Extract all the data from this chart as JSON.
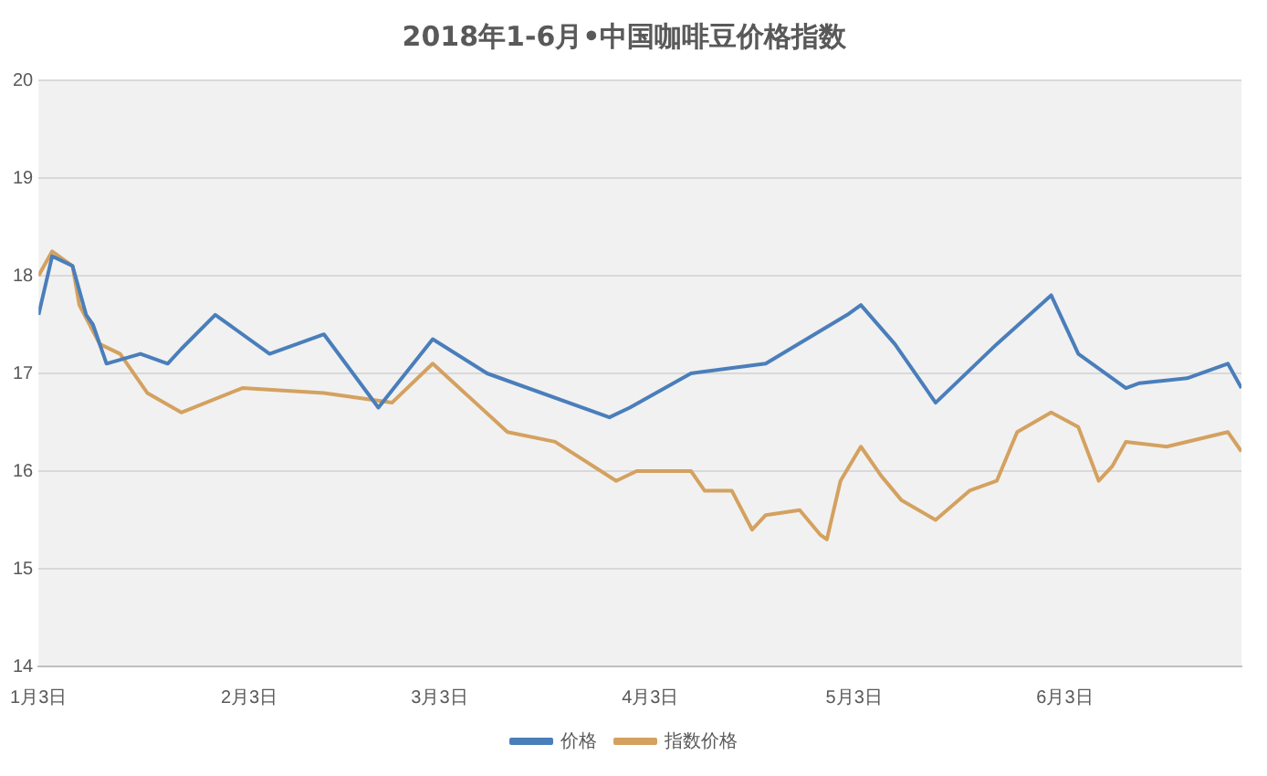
{
  "chart_data": {
    "type": "line",
    "title": "2018年1-6月•中国咖啡豆价格指数",
    "xlim": [
      "2018-01-03",
      "2018-06-29"
    ],
    "xticks": [
      {
        "value": "2018-01-03",
        "label": "1月3日"
      },
      {
        "value": "2018-02-03",
        "label": "2月3日"
      },
      {
        "value": "2018-03-03",
        "label": "3月3日"
      },
      {
        "value": "2018-04-03",
        "label": "4月3日"
      },
      {
        "value": "2018-05-03",
        "label": "5月3日"
      },
      {
        "value": "2018-06-03",
        "label": "6月3日"
      }
    ],
    "ylim": [
      14,
      20
    ],
    "yticks": [
      14,
      15,
      16,
      17,
      18,
      19,
      20
    ],
    "grid": "y",
    "legend": "bottom",
    "marker": "none",
    "line_style": "solid",
    "series": [
      {
        "name": "价格",
        "color": "#4a7ebb",
        "x": [
          "2018-01-03",
          "2018-01-05",
          "2018-01-08",
          "2018-01-10",
          "2018-01-11",
          "2018-01-13",
          "2018-01-18",
          "2018-01-22",
          "2018-01-24",
          "2018-01-29",
          "2018-02-06",
          "2018-02-14",
          "2018-02-22",
          "2018-03-02",
          "2018-03-10",
          "2018-03-28",
          "2018-03-31",
          "2018-04-09",
          "2018-04-20",
          "2018-05-02",
          "2018-05-04",
          "2018-05-09",
          "2018-05-15",
          "2018-05-24",
          "2018-06-01",
          "2018-06-05",
          "2018-06-12",
          "2018-06-14",
          "2018-06-21",
          "2018-06-27",
          "2018-06-29"
        ],
        "values": [
          17.6,
          18.2,
          18.1,
          17.6,
          17.5,
          17.1,
          17.2,
          17.1,
          17.25,
          17.6,
          17.2,
          17.4,
          16.65,
          17.35,
          17.0,
          16.55,
          16.65,
          17.0,
          17.1,
          17.6,
          17.7,
          17.3,
          16.7,
          17.3,
          17.8,
          17.2,
          16.85,
          16.9,
          16.95,
          17.1,
          16.85
        ]
      },
      {
        "name": "指数价格",
        "color": "#d4a160",
        "x": [
          "2018-01-03",
          "2018-01-05",
          "2018-01-08",
          "2018-01-09",
          "2018-01-12",
          "2018-01-15",
          "2018-01-19",
          "2018-01-24",
          "2018-02-02",
          "2018-02-14",
          "2018-02-24",
          "2018-03-02",
          "2018-03-13",
          "2018-03-20",
          "2018-03-29",
          "2018-04-01",
          "2018-04-09",
          "2018-04-11",
          "2018-04-15",
          "2018-04-18",
          "2018-04-20",
          "2018-04-25",
          "2018-04-28",
          "2018-04-29",
          "2018-05-01",
          "2018-05-04",
          "2018-05-07",
          "2018-05-10",
          "2018-05-15",
          "2018-05-20",
          "2018-05-24",
          "2018-05-27",
          "2018-06-01",
          "2018-06-05",
          "2018-06-08",
          "2018-06-10",
          "2018-06-12",
          "2018-06-18",
          "2018-06-27",
          "2018-06-29"
        ],
        "values": [
          18.0,
          18.25,
          18.1,
          17.7,
          17.3,
          17.2,
          16.8,
          16.6,
          16.85,
          16.8,
          16.7,
          17.1,
          16.4,
          16.3,
          15.9,
          16.0,
          16.0,
          15.8,
          15.8,
          15.4,
          15.55,
          15.6,
          15.35,
          15.3,
          15.9,
          16.25,
          15.95,
          15.7,
          15.5,
          15.8,
          15.9,
          16.4,
          16.6,
          16.45,
          15.9,
          16.05,
          16.3,
          16.25,
          16.4,
          16.2
        ]
      }
    ]
  }
}
